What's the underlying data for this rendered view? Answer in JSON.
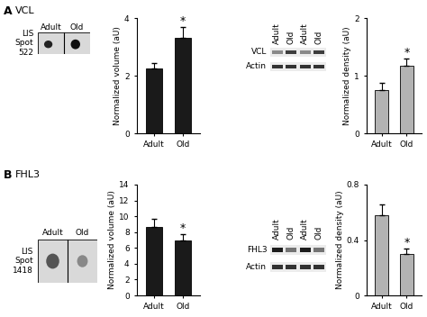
{
  "chart_data": [
    {
      "type": "bar",
      "panel": "A",
      "categories": [
        "Adult",
        "Old"
      ],
      "values": [
        2.25,
        3.3
      ],
      "errors": [
        0.2,
        0.4
      ],
      "significance": [
        null,
        "*"
      ],
      "ylabel": "Normalized volume (aU)",
      "ylim": [
        0,
        4
      ],
      "yticks": [
        0,
        2,
        4
      ],
      "color": "#1a1a1a"
    },
    {
      "type": "bar",
      "panel": "A",
      "categories": [
        "Adult",
        "Old"
      ],
      "values": [
        0.75,
        1.17
      ],
      "errors": [
        0.12,
        0.13
      ],
      "significance": [
        null,
        "*"
      ],
      "ylabel": "Normalized density (aU)",
      "ylim": [
        0,
        2
      ],
      "yticks": [
        0,
        1,
        2
      ],
      "color": "#b3b3b3"
    },
    {
      "type": "bar",
      "panel": "B",
      "categories": [
        "Adult",
        "Old"
      ],
      "values": [
        8.6,
        6.9
      ],
      "errors": [
        1.1,
        0.8
      ],
      "significance": [
        null,
        "*"
      ],
      "ylabel": "Normalized volume (aU)",
      "ylim": [
        0,
        14
      ],
      "yticks": [
        0,
        2,
        4,
        6,
        8,
        10,
        12,
        14
      ],
      "color": "#1a1a1a"
    },
    {
      "type": "bar",
      "panel": "B",
      "categories": [
        "Adult",
        "Old"
      ],
      "values": [
        0.58,
        0.3
      ],
      "errors": [
        0.08,
        0.04
      ],
      "significance": [
        null,
        "*"
      ],
      "ylabel": "Normalized density (aU)",
      "ylim": [
        0,
        0.8
      ],
      "yticks": [
        0,
        0.4,
        0.8
      ],
      "color": "#b3b3b3"
    }
  ],
  "panels": [
    {
      "label": "A",
      "title": "VCL",
      "spot_label": [
        "LIS",
        "Spot",
        "522"
      ],
      "gel_lanes": [
        "Adult",
        "Old"
      ],
      "blot_lanes": [
        "Adult",
        "Old",
        "Adult",
        "Old"
      ],
      "blot_rows": [
        "VCL",
        "Actin"
      ]
    },
    {
      "label": "B",
      "title": "FHL3",
      "spot_label": [
        "LIS",
        "Spot",
        "1418"
      ],
      "gel_lanes": [
        "Adult",
        "Old"
      ],
      "blot_lanes": [
        "Adult",
        "Old",
        "Adult",
        "Old"
      ],
      "blot_rows": [
        "FHL3",
        "Actin"
      ]
    }
  ]
}
